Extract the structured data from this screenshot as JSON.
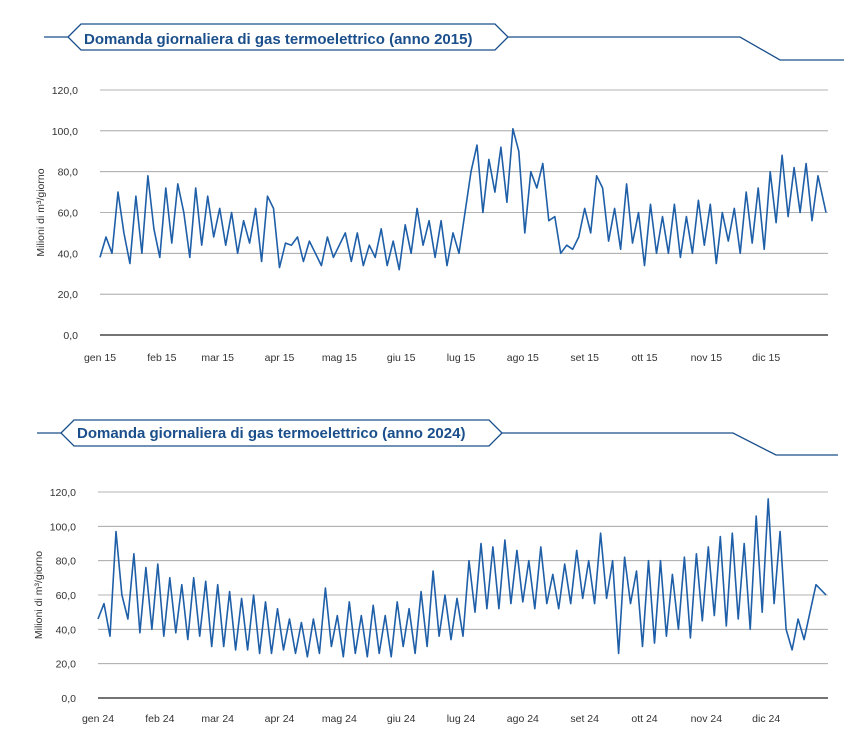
{
  "colors": {
    "accent": "#1a4f8b",
    "line": "#1f5fa8",
    "grid": "#9a9a9a",
    "axis": "#222222"
  },
  "chart_data": [
    {
      "type": "line",
      "title": "Domanda giornaliera di gas termoelettrico (anno 2015)",
      "xlabel": "",
      "ylabel": "Milioni di m³/giorno",
      "ylim": [
        0,
        120
      ],
      "yticks": [
        "0,0",
        "20,0",
        "40,0",
        "60,0",
        "80,0",
        "100,0",
        "120,0"
      ],
      "xticks": [
        "gen 15",
        "feb 15",
        "mar 15",
        "apr 15",
        "mag 15",
        "giu 15",
        "lug 15",
        "ago 15",
        "set 15",
        "ott 15",
        "nov 15",
        "dic 15"
      ],
      "grid": true,
      "x": [
        "2015-01-01",
        "2015-01-04",
        "2015-01-07",
        "2015-01-10",
        "2015-01-13",
        "2015-01-16",
        "2015-01-19",
        "2015-01-22",
        "2015-01-25",
        "2015-01-28",
        "2015-01-31",
        "2015-02-03",
        "2015-02-06",
        "2015-02-09",
        "2015-02-12",
        "2015-02-15",
        "2015-02-18",
        "2015-02-21",
        "2015-02-24",
        "2015-02-27",
        "2015-03-02",
        "2015-03-05",
        "2015-03-08",
        "2015-03-11",
        "2015-03-14",
        "2015-03-17",
        "2015-03-20",
        "2015-03-23",
        "2015-03-26",
        "2015-03-29",
        "2015-04-01",
        "2015-04-04",
        "2015-04-07",
        "2015-04-10",
        "2015-04-13",
        "2015-04-16",
        "2015-04-19",
        "2015-04-22",
        "2015-04-25",
        "2015-04-28",
        "2015-05-01",
        "2015-05-04",
        "2015-05-07",
        "2015-05-10",
        "2015-05-13",
        "2015-05-16",
        "2015-05-19",
        "2015-05-22",
        "2015-05-25",
        "2015-05-28",
        "2015-05-31",
        "2015-06-03",
        "2015-06-06",
        "2015-06-09",
        "2015-06-12",
        "2015-06-15",
        "2015-06-18",
        "2015-06-21",
        "2015-06-24",
        "2015-06-27",
        "2015-06-30",
        "2015-07-03",
        "2015-07-06",
        "2015-07-09",
        "2015-07-12",
        "2015-07-15",
        "2015-07-18",
        "2015-07-21",
        "2015-07-24",
        "2015-07-27",
        "2015-07-30",
        "2015-08-02",
        "2015-08-05",
        "2015-08-08",
        "2015-08-11",
        "2015-08-14",
        "2015-08-17",
        "2015-08-20",
        "2015-08-23",
        "2015-08-26",
        "2015-08-29",
        "2015-09-01",
        "2015-09-04",
        "2015-09-07",
        "2015-09-10",
        "2015-09-13",
        "2015-09-16",
        "2015-09-19",
        "2015-09-22",
        "2015-09-25",
        "2015-09-28",
        "2015-10-01",
        "2015-10-04",
        "2015-10-07",
        "2015-10-10",
        "2015-10-13",
        "2015-10-16",
        "2015-10-19",
        "2015-10-22",
        "2015-10-25",
        "2015-10-28",
        "2015-10-31",
        "2015-11-03",
        "2015-11-06",
        "2015-11-09",
        "2015-11-12",
        "2015-11-15",
        "2015-11-18",
        "2015-11-21",
        "2015-11-24",
        "2015-11-27",
        "2015-11-30",
        "2015-12-03",
        "2015-12-06",
        "2015-12-09",
        "2015-12-12",
        "2015-12-15",
        "2015-12-18",
        "2015-12-21",
        "2015-12-24",
        "2015-12-27",
        "2015-12-31"
      ],
      "values": [
        38,
        48,
        40,
        70,
        50,
        35,
        68,
        40,
        78,
        52,
        38,
        72,
        45,
        74,
        60,
        38,
        72,
        44,
        68,
        48,
        62,
        44,
        60,
        40,
        56,
        45,
        62,
        36,
        68,
        62,
        33,
        45,
        44,
        48,
        36,
        46,
        40,
        34,
        48,
        38,
        44,
        50,
        36,
        50,
        34,
        44,
        38,
        52,
        34,
        46,
        32,
        54,
        40,
        62,
        44,
        56,
        38,
        56,
        34,
        50,
        40,
        60,
        80,
        93,
        60,
        86,
        70,
        92,
        65,
        101,
        90,
        50,
        80,
        72,
        84,
        56,
        58,
        40,
        44,
        42,
        48,
        62,
        50,
        78,
        72,
        46,
        62,
        42,
        74,
        45,
        60,
        34,
        64,
        40,
        58,
        40,
        64,
        38,
        58,
        40,
        66,
        44,
        64,
        35,
        60,
        46,
        62,
        40,
        70,
        45,
        72,
        42,
        80,
        55,
        88,
        58,
        82,
        60,
        84,
        56,
        78,
        60
      ]
    },
    {
      "type": "line",
      "title": "Domanda giornaliera di gas termoelettrico (anno 2024)",
      "xlabel": "",
      "ylabel": "Milioni di m³/giorno",
      "ylim": [
        0,
        120
      ],
      "yticks": [
        "0,0",
        "20,0",
        "40,0",
        "60,0",
        "80,0",
        "100,0",
        "120,0"
      ],
      "xticks": [
        "gen 24",
        "feb 24",
        "mar 24",
        "apr 24",
        "mag 24",
        "giu 24",
        "lug 24",
        "ago 24",
        "set 24",
        "ott 24",
        "nov 24",
        "dic 24"
      ],
      "grid": true,
      "x": [
        "2024-01-01",
        "2024-01-04",
        "2024-01-07",
        "2024-01-10",
        "2024-01-13",
        "2024-01-16",
        "2024-01-19",
        "2024-01-22",
        "2024-01-25",
        "2024-01-28",
        "2024-01-31",
        "2024-02-03",
        "2024-02-06",
        "2024-02-09",
        "2024-02-12",
        "2024-02-15",
        "2024-02-18",
        "2024-02-21",
        "2024-02-24",
        "2024-02-27",
        "2024-03-01",
        "2024-03-04",
        "2024-03-07",
        "2024-03-10",
        "2024-03-13",
        "2024-03-16",
        "2024-03-19",
        "2024-03-22",
        "2024-03-25",
        "2024-03-28",
        "2024-03-31",
        "2024-04-03",
        "2024-04-06",
        "2024-04-09",
        "2024-04-12",
        "2024-04-15",
        "2024-04-18",
        "2024-04-21",
        "2024-04-24",
        "2024-04-27",
        "2024-04-30",
        "2024-05-03",
        "2024-05-06",
        "2024-05-09",
        "2024-05-12",
        "2024-05-15",
        "2024-05-18",
        "2024-05-21",
        "2024-05-24",
        "2024-05-27",
        "2024-05-30",
        "2024-06-02",
        "2024-06-05",
        "2024-06-08",
        "2024-06-11",
        "2024-06-14",
        "2024-06-17",
        "2024-06-20",
        "2024-06-23",
        "2024-06-26",
        "2024-06-29",
        "2024-07-02",
        "2024-07-05",
        "2024-07-08",
        "2024-07-11",
        "2024-07-14",
        "2024-07-17",
        "2024-07-20",
        "2024-07-23",
        "2024-07-26",
        "2024-07-29",
        "2024-08-01",
        "2024-08-04",
        "2024-08-07",
        "2024-08-10",
        "2024-08-13",
        "2024-08-16",
        "2024-08-19",
        "2024-08-22",
        "2024-08-25",
        "2024-08-28",
        "2024-08-31",
        "2024-09-03",
        "2024-09-06",
        "2024-09-09",
        "2024-09-12",
        "2024-09-15",
        "2024-09-18",
        "2024-09-21",
        "2024-09-24",
        "2024-09-27",
        "2024-09-30",
        "2024-10-03",
        "2024-10-06",
        "2024-10-09",
        "2024-10-12",
        "2024-10-15",
        "2024-10-18",
        "2024-10-21",
        "2024-10-24",
        "2024-10-27",
        "2024-10-30",
        "2024-11-02",
        "2024-11-05",
        "2024-11-08",
        "2024-11-11",
        "2024-11-14",
        "2024-11-17",
        "2024-11-20",
        "2024-11-23",
        "2024-11-26",
        "2024-11-29",
        "2024-12-02",
        "2024-12-05",
        "2024-12-08",
        "2024-12-11",
        "2024-12-14",
        "2024-12-17",
        "2024-12-20",
        "2024-12-23",
        "2024-12-26",
        "2024-12-31"
      ],
      "values": [
        46,
        55,
        36,
        97,
        60,
        46,
        84,
        38,
        76,
        40,
        78,
        36,
        70,
        38,
        66,
        34,
        70,
        36,
        68,
        30,
        66,
        30,
        62,
        28,
        58,
        28,
        60,
        26,
        56,
        26,
        52,
        28,
        46,
        26,
        44,
        24,
        46,
        26,
        64,
        30,
        48,
        24,
        56,
        26,
        48,
        24,
        54,
        26,
        48,
        24,
        56,
        30,
        52,
        26,
        62,
        30,
        74,
        36,
        60,
        34,
        58,
        36,
        80,
        50,
        90,
        52,
        88,
        52,
        92,
        55,
        86,
        56,
        80,
        52,
        88,
        55,
        72,
        52,
        78,
        55,
        86,
        58,
        80,
        55,
        96,
        58,
        80,
        26,
        82,
        55,
        74,
        30,
        80,
        32,
        80,
        36,
        72,
        40,
        82,
        35,
        84,
        45,
        88,
        48,
        94,
        42,
        96,
        46,
        90,
        40,
        106,
        50,
        116,
        55,
        97,
        40,
        28,
        46,
        34,
        50,
        66,
        60
      ]
    }
  ]
}
